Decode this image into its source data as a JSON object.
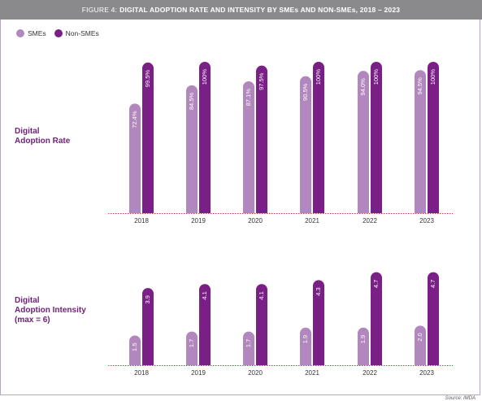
{
  "header": {
    "prefix": "FIGURE 4:",
    "title": "DIGITAL ADOPTION RATE AND INTENSITY BY SMEs AND NON-SMEs, 2018 – 2023"
  },
  "legend": {
    "sme_label": "SMEs",
    "nonsme_label": "Non-SMEs"
  },
  "colors": {
    "sme": "#b287bd",
    "nonsme": "#7a1f86",
    "baseline": "#d33a4a"
  },
  "rows": {
    "rate_label_line1": "Digital",
    "rate_label_line2": "Adoption Rate",
    "intensity_label_line1": "Digital",
    "intensity_label_line2": "Adoption Intensity",
    "intensity_label_line3": "(max = 6)"
  },
  "source": "Source: IMDA",
  "chart_data": [
    {
      "type": "bar",
      "title": "Digital Adoption Rate",
      "categories": [
        "2018",
        "2019",
        "2020",
        "2021",
        "2022",
        "2023"
      ],
      "series": [
        {
          "name": "SMEs",
          "values": [
            72.4,
            84.5,
            87.1,
            90.5,
            94.0,
            94.5
          ],
          "labels": [
            "72.4%",
            "84.5%",
            "87.1%",
            "90.5%",
            "94.0%",
            "94.5%"
          ]
        },
        {
          "name": "Non-SMEs",
          "values": [
            99.5,
            100,
            97.5,
            100,
            100,
            100
          ],
          "labels": [
            "99.5%",
            "100%",
            "97.5%",
            "100%",
            "100%",
            "100%"
          ]
        }
      ],
      "ylim": [
        0,
        100
      ]
    },
    {
      "type": "bar",
      "title": "Digital Adoption Intensity (max = 6)",
      "categories": [
        "2018",
        "2019",
        "2020",
        "2021",
        "2022",
        "2023"
      ],
      "series": [
        {
          "name": "SMEs",
          "values": [
            1.5,
            1.7,
            1.7,
            1.9,
            1.9,
            2.0
          ],
          "labels": [
            "1.5",
            "1.7",
            "1.7",
            "1.9",
            "1.9",
            "2.0"
          ]
        },
        {
          "name": "Non-SMEs",
          "values": [
            3.9,
            4.1,
            4.1,
            4.3,
            4.7,
            4.7
          ],
          "labels": [
            "3.9",
            "4.1",
            "4.1",
            "4.3",
            "4.7",
            "4.7"
          ]
        }
      ],
      "ylim": [
        0,
        6
      ]
    }
  ]
}
